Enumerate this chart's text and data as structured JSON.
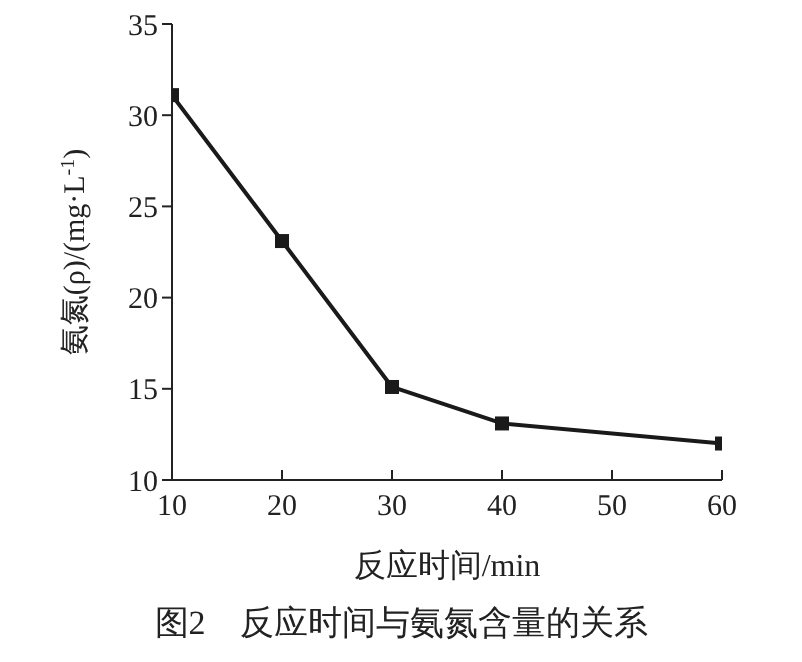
{
  "chart_data": {
    "type": "line",
    "title": "图2　反应时间与氨氮含量的关系",
    "xlabel": "反应时间/min",
    "ylabel": "氨氮(ρ)/(mg·L$^{-1}$)",
    "x": [
      10,
      20,
      30,
      40,
      60
    ],
    "series": [
      {
        "color": "#1a1a1a",
        "values": [
          31.1,
          23.1,
          15.1,
          13.1,
          12.0
        ]
      }
    ],
    "xlim": [
      10,
      60
    ],
    "xticks": [
      10,
      20,
      30,
      40,
      50,
      60
    ],
    "ylim": [
      10,
      35
    ],
    "yticks": [
      10,
      15,
      20,
      25,
      30,
      35
    ],
    "grid": false,
    "legend": false,
    "marker": "square",
    "line_style": "solid"
  }
}
